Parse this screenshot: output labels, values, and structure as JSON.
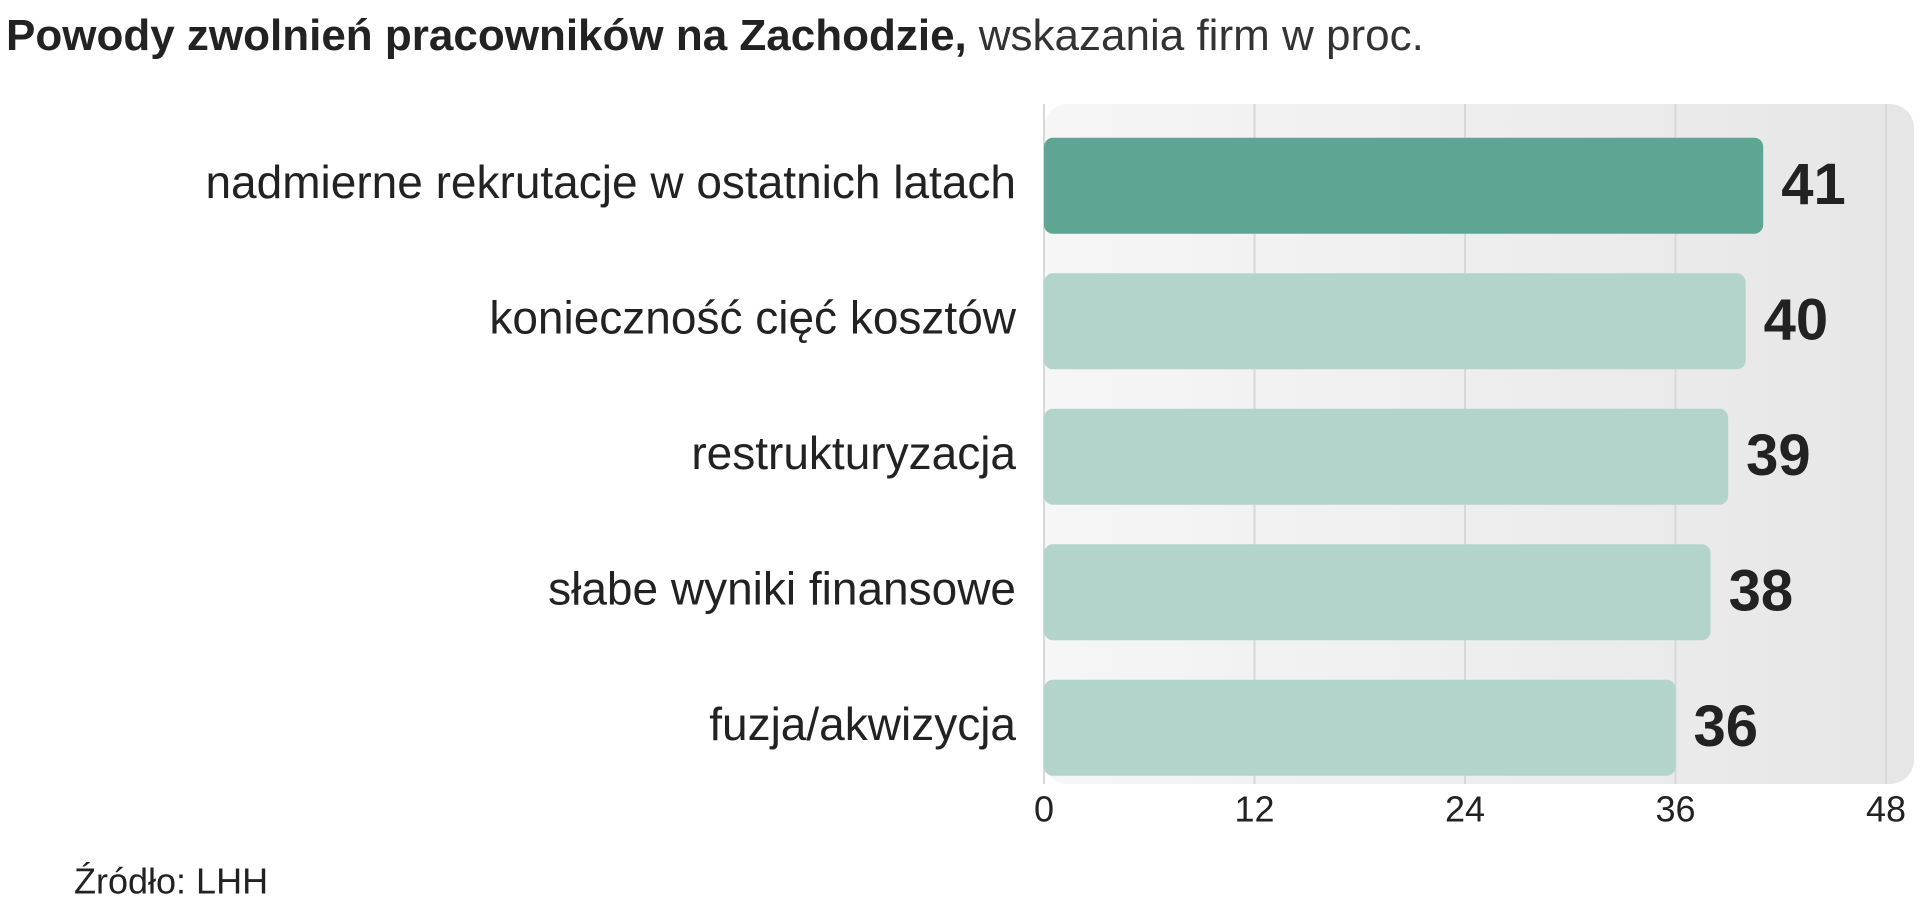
{
  "chart_data": {
    "type": "hbar",
    "title": "Powody zwolnień pracowników na Zachodzie,",
    "subtitle": "wskazania firm w proc.",
    "categories": [
      "nadmierne rekrutacje w ostatnich latach",
      "konieczność cięć kosztów",
      "restrukturyzacja",
      "słabe wyniki finansowe",
      "fuzja/akwizycja"
    ],
    "values": [
      41,
      40,
      39,
      38,
      36
    ],
    "colors": [
      "#5fa593",
      "#b2d4ca",
      "#b2d4ca",
      "#b2d4ca",
      "#b2d4ca"
    ],
    "xlim": [
      0,
      48
    ],
    "xticks": [
      0,
      12,
      24,
      36,
      48
    ],
    "grid": true,
    "source": "Źródło: LHH"
  }
}
